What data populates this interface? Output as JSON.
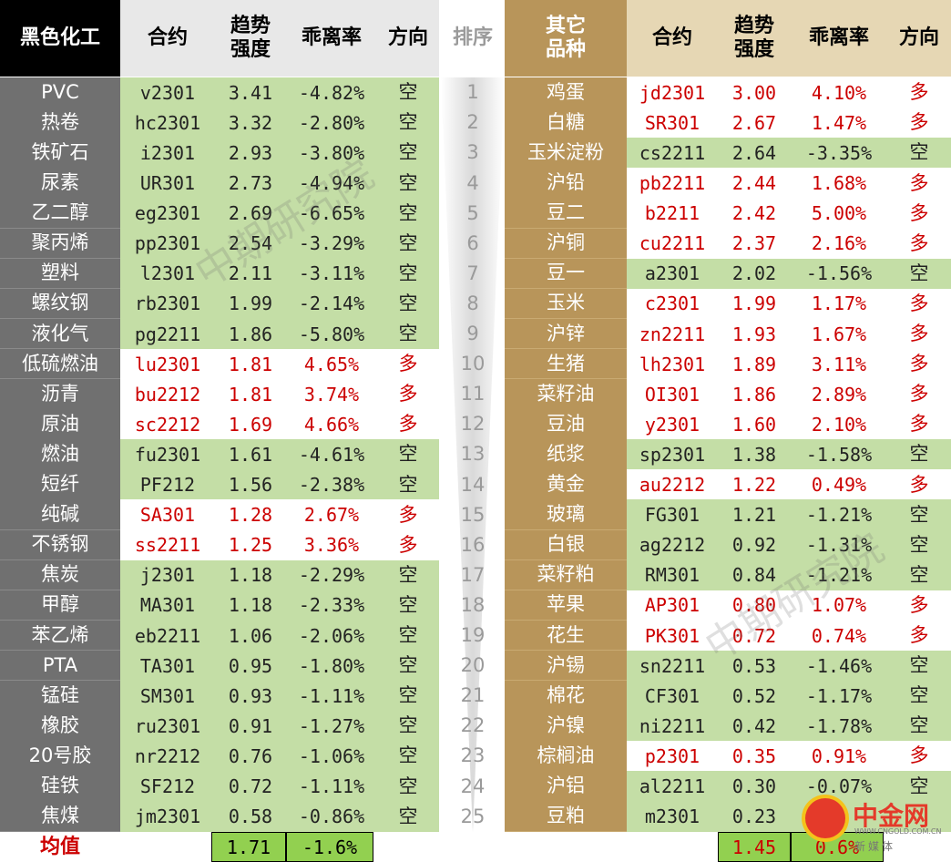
{
  "headers": {
    "left": [
      "黑色化工",
      "合约",
      "趋势\n强度",
      "乖离率",
      "方向"
    ],
    "rank": "排序",
    "right": [
      "其它\n品种",
      "合约",
      "趋势\n强度",
      "乖离率",
      "方向"
    ]
  },
  "left_rows": [
    {
      "name": "PVC",
      "contract": "v2301",
      "strength": "3.41",
      "deviation": "-4.82%",
      "direction": "空"
    },
    {
      "name": "热卷",
      "contract": "hc2301",
      "strength": "3.32",
      "deviation": "-2.80%",
      "direction": "空"
    },
    {
      "name": "铁矿石",
      "contract": "i2301",
      "strength": "2.93",
      "deviation": "-3.80%",
      "direction": "空"
    },
    {
      "name": "尿素",
      "contract": "UR301",
      "strength": "2.73",
      "deviation": "-4.94%",
      "direction": "空"
    },
    {
      "name": "乙二醇",
      "contract": "eg2301",
      "strength": "2.69",
      "deviation": "-6.65%",
      "direction": "空"
    },
    {
      "name": "聚丙烯",
      "contract": "pp2301",
      "strength": "2.54",
      "deviation": "-3.29%",
      "direction": "空"
    },
    {
      "name": "塑料",
      "contract": "l2301",
      "strength": "2.11",
      "deviation": "-3.11%",
      "direction": "空"
    },
    {
      "name": "螺纹钢",
      "contract": "rb2301",
      "strength": "1.99",
      "deviation": "-2.14%",
      "direction": "空"
    },
    {
      "name": "液化气",
      "contract": "pg2211",
      "strength": "1.86",
      "deviation": "-5.80%",
      "direction": "空"
    },
    {
      "name": "低硫燃油",
      "contract": "lu2301",
      "strength": "1.81",
      "deviation": "4.65%",
      "direction": "多"
    },
    {
      "name": "沥青",
      "contract": "bu2212",
      "strength": "1.81",
      "deviation": "3.74%",
      "direction": "多"
    },
    {
      "name": "原油",
      "contract": "sc2212",
      "strength": "1.69",
      "deviation": "4.66%",
      "direction": "多"
    },
    {
      "name": "燃油",
      "contract": "fu2301",
      "strength": "1.61",
      "deviation": "-4.61%",
      "direction": "空"
    },
    {
      "name": "短纤",
      "contract": "PF212",
      "strength": "1.56",
      "deviation": "-2.38%",
      "direction": "空"
    },
    {
      "name": "纯碱",
      "contract": "SA301",
      "strength": "1.28",
      "deviation": "2.67%",
      "direction": "多"
    },
    {
      "name": "不锈钢",
      "contract": "ss2211",
      "strength": "1.25",
      "deviation": "3.36%",
      "direction": "多"
    },
    {
      "name": "焦炭",
      "contract": "j2301",
      "strength": "1.18",
      "deviation": "-2.29%",
      "direction": "空"
    },
    {
      "name": "甲醇",
      "contract": "MA301",
      "strength": "1.18",
      "deviation": "-2.33%",
      "direction": "空"
    },
    {
      "name": "苯乙烯",
      "contract": "eb2211",
      "strength": "1.06",
      "deviation": "-2.06%",
      "direction": "空"
    },
    {
      "name": "PTA",
      "contract": "TA301",
      "strength": "0.95",
      "deviation": "-1.80%",
      "direction": "空"
    },
    {
      "name": "锰硅",
      "contract": "SM301",
      "strength": "0.93",
      "deviation": "-1.11%",
      "direction": "空"
    },
    {
      "name": "橡胶",
      "contract": "ru2301",
      "strength": "0.91",
      "deviation": "-1.27%",
      "direction": "空"
    },
    {
      "name": "20号胶",
      "contract": "nr2212",
      "strength": "0.76",
      "deviation": "-1.06%",
      "direction": "空"
    },
    {
      "name": "硅铁",
      "contract": "SF212",
      "strength": "0.72",
      "deviation": "-1.11%",
      "direction": "空"
    },
    {
      "name": "焦煤",
      "contract": "jm2301",
      "strength": "0.58",
      "deviation": "-0.86%",
      "direction": "空"
    }
  ],
  "right_rows": [
    {
      "name": "鸡蛋",
      "contract": "jd2301",
      "strength": "3.00",
      "deviation": "4.10%",
      "direction": "多"
    },
    {
      "name": "白糖",
      "contract": "SR301",
      "strength": "2.67",
      "deviation": "1.47%",
      "direction": "多"
    },
    {
      "name": "玉米淀粉",
      "contract": "cs2211",
      "strength": "2.64",
      "deviation": "-3.35%",
      "direction": "空"
    },
    {
      "name": "沪铅",
      "contract": "pb2211",
      "strength": "2.44",
      "deviation": "1.68%",
      "direction": "多"
    },
    {
      "name": "豆二",
      "contract": "b2211",
      "strength": "2.42",
      "deviation": "5.00%",
      "direction": "多"
    },
    {
      "name": "沪铜",
      "contract": "cu2211",
      "strength": "2.37",
      "deviation": "2.16%",
      "direction": "多"
    },
    {
      "name": "豆一",
      "contract": "a2301",
      "strength": "2.02",
      "deviation": "-1.56%",
      "direction": "空"
    },
    {
      "name": "玉米",
      "contract": "c2301",
      "strength": "1.99",
      "deviation": "1.17%",
      "direction": "多"
    },
    {
      "name": "沪锌",
      "contract": "zn2211",
      "strength": "1.93",
      "deviation": "1.67%",
      "direction": "多"
    },
    {
      "name": "生猪",
      "contract": "lh2301",
      "strength": "1.89",
      "deviation": "3.11%",
      "direction": "多"
    },
    {
      "name": "菜籽油",
      "contract": "OI301",
      "strength": "1.86",
      "deviation": "2.89%",
      "direction": "多"
    },
    {
      "name": "豆油",
      "contract": "y2301",
      "strength": "1.60",
      "deviation": "2.10%",
      "direction": "多"
    },
    {
      "name": "纸浆",
      "contract": "sp2301",
      "strength": "1.38",
      "deviation": "-1.58%",
      "direction": "空"
    },
    {
      "name": "黄金",
      "contract": "au2212",
      "strength": "1.22",
      "deviation": "0.49%",
      "direction": "多"
    },
    {
      "name": "玻璃",
      "contract": "FG301",
      "strength": "1.21",
      "deviation": "-1.21%",
      "direction": "空"
    },
    {
      "name": "白银",
      "contract": "ag2212",
      "strength": "0.92",
      "deviation": "-1.31%",
      "direction": "空"
    },
    {
      "name": "菜籽粕",
      "contract": "RM301",
      "strength": "0.84",
      "deviation": "-1.21%",
      "direction": "空"
    },
    {
      "name": "苹果",
      "contract": "AP301",
      "strength": "0.80",
      "deviation": "1.07%",
      "direction": "多"
    },
    {
      "name": "花生",
      "contract": "PK301",
      "strength": "0.72",
      "deviation": "0.74%",
      "direction": "多"
    },
    {
      "name": "沪锡",
      "contract": "sn2211",
      "strength": "0.53",
      "deviation": "-1.46%",
      "direction": "空"
    },
    {
      "name": "棉花",
      "contract": "CF301",
      "strength": "0.52",
      "deviation": "-1.17%",
      "direction": "空"
    },
    {
      "name": "沪镍",
      "contract": "ni2211",
      "strength": "0.42",
      "deviation": "-1.78%",
      "direction": "空"
    },
    {
      "name": "棕榈油",
      "contract": "p2301",
      "strength": "0.35",
      "deviation": "0.91%",
      "direction": "多"
    },
    {
      "name": "沪铝",
      "contract": "al2211",
      "strength": "0.30",
      "deviation": "-0.07%",
      "direction": "空"
    },
    {
      "name": "豆粕",
      "contract": "m2301",
      "strength": "0.23",
      "deviation": "",
      "direction": ""
    }
  ],
  "summary": {
    "label": "均值",
    "left_strength": "1.71",
    "left_deviation": "-1.6%",
    "right_strength": "1.45",
    "right_deviation": "0.6%"
  },
  "watermark": "中期研究院",
  "logo": {
    "name": "中金网",
    "domain": "WWW.CNGOLD.COM.CN",
    "slogan": "新媒体"
  },
  "colors": {
    "positive": "#cc0000",
    "negative_row_bg": "#c4dea6",
    "left_category_bg": "#707070",
    "right_category_bg": "#b8955a",
    "header_left_bg": "#000000",
    "header_right_bg": "#b8955a"
  }
}
